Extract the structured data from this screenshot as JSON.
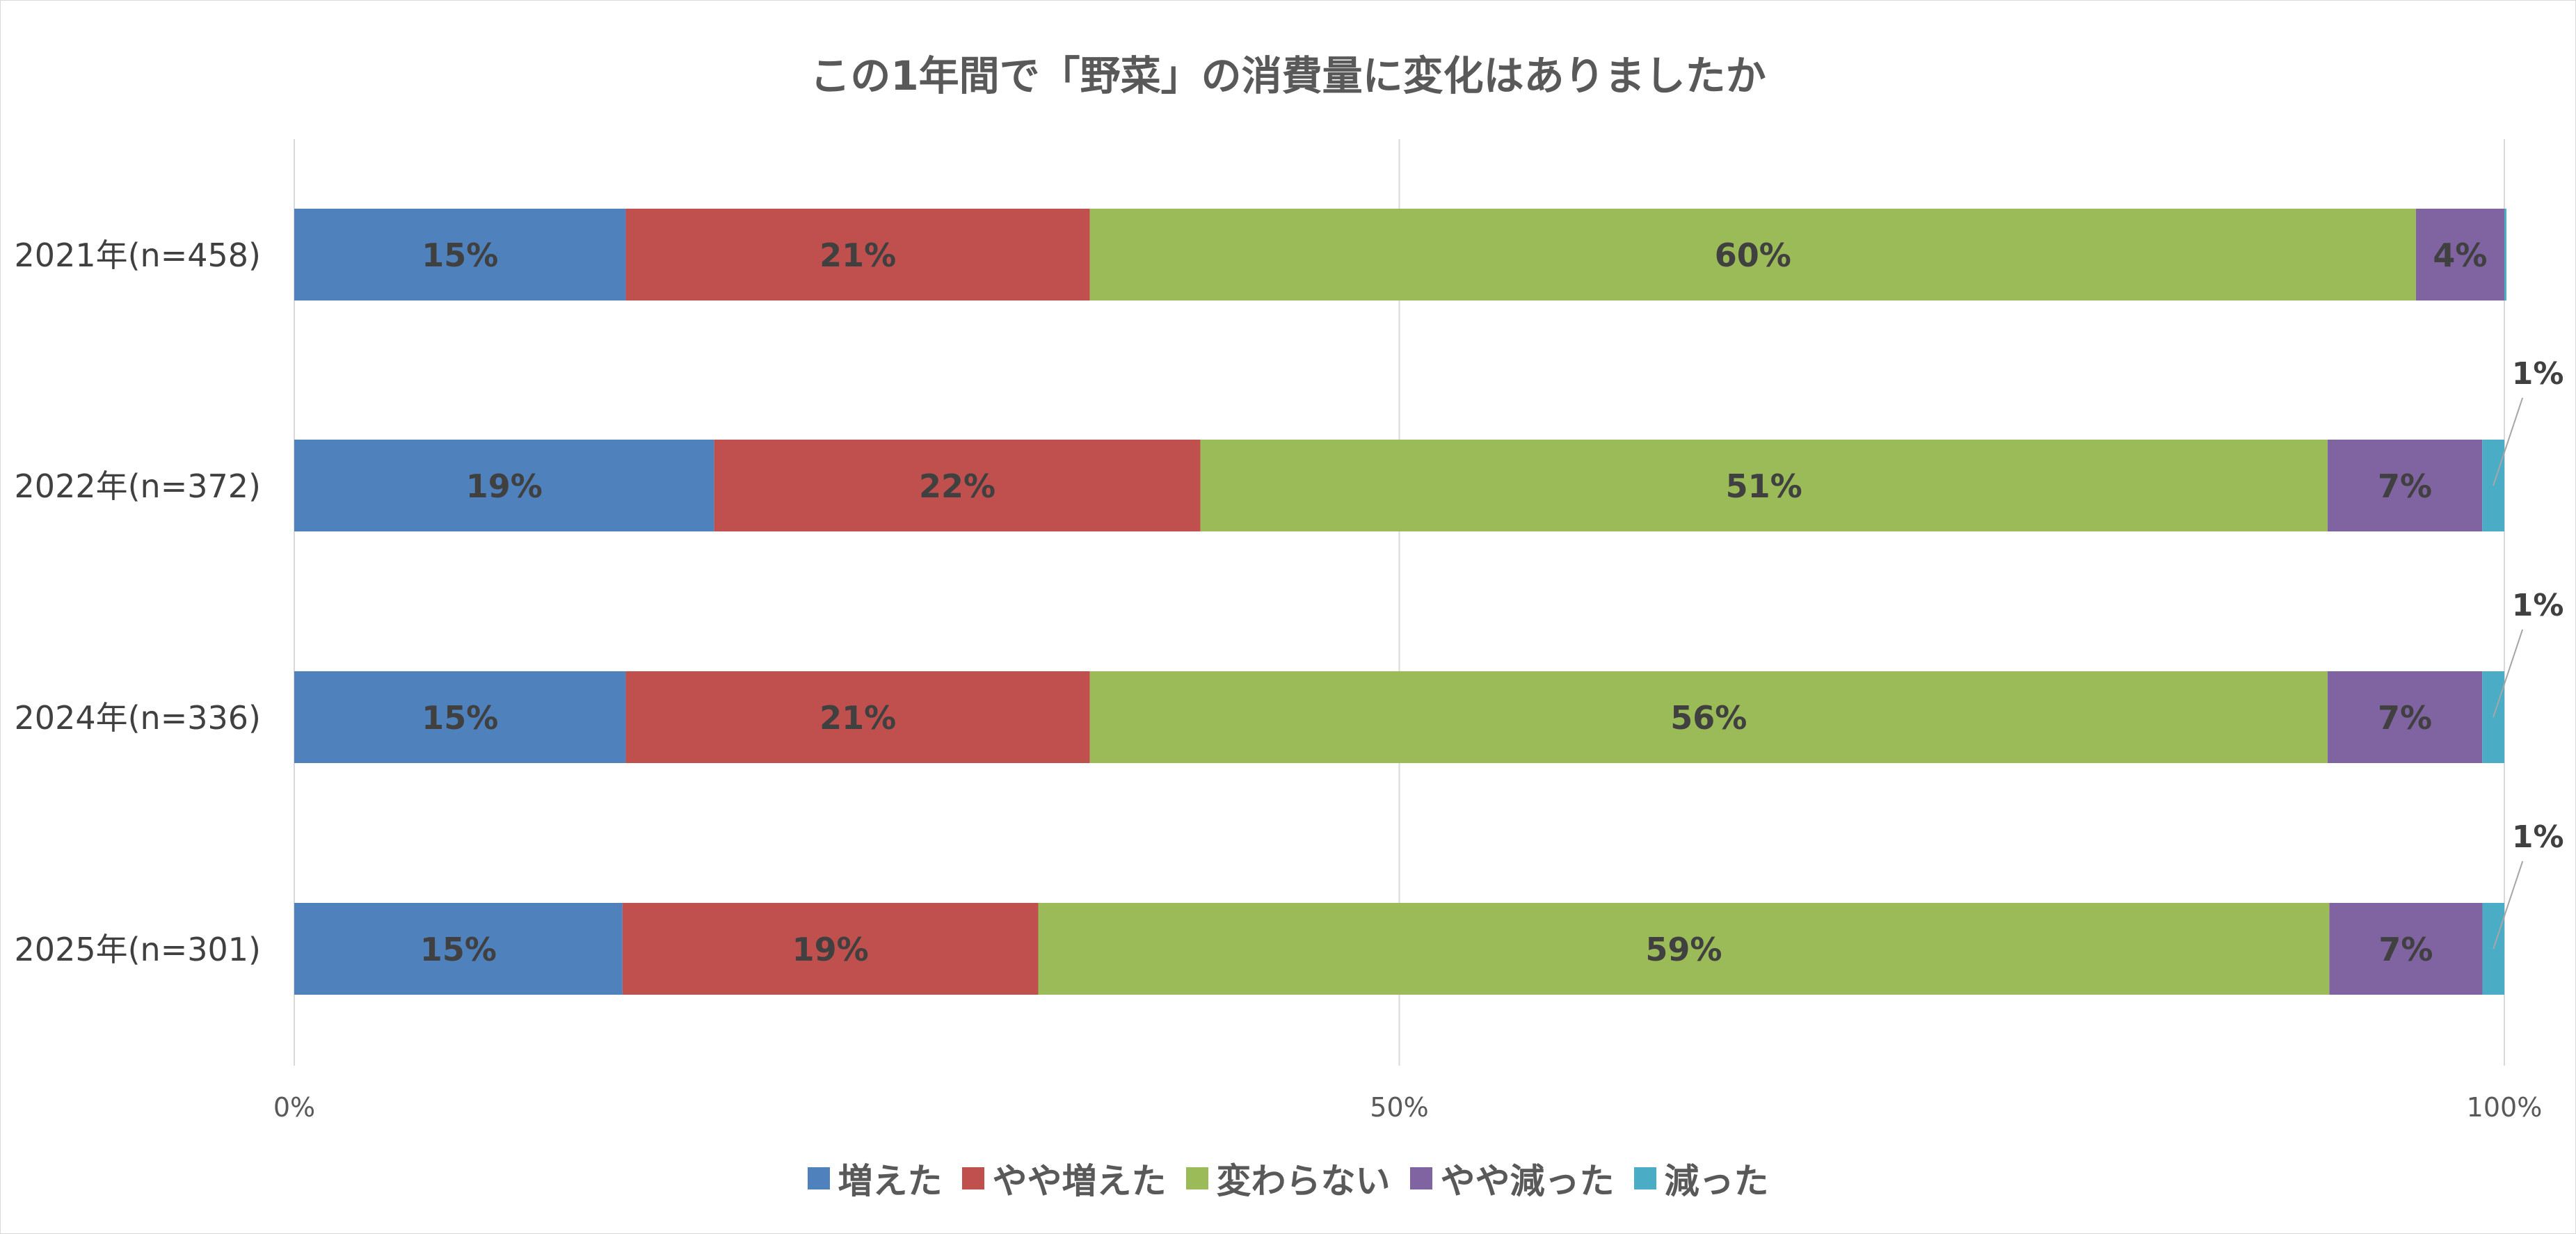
{
  "chart_data": {
    "type": "bar",
    "orientation": "horizontal",
    "stacked": "percent",
    "title": "この1年間で「野菜」の消費量に変化はありましたか",
    "categories": [
      "2021年(n=458)",
      "2022年(n=372)",
      "2024年(n=336)",
      "2025年(n=301)"
    ],
    "series": [
      {
        "name": "増えた",
        "color": "#4f81bd",
        "values": [
          15,
          19,
          15,
          15
        ]
      },
      {
        "name": "やや増えた",
        "color": "#c0504d",
        "values": [
          21,
          22,
          21,
          19
        ]
      },
      {
        "name": "変わらない",
        "color": "#9bbb59",
        "values": [
          60,
          51,
          56,
          59
        ]
      },
      {
        "name": "やや減った",
        "color": "#8064a2",
        "values": [
          4,
          7,
          7,
          7
        ]
      },
      {
        "name": "減った",
        "color": "#4bacc6",
        "values": [
          0,
          1,
          1,
          1
        ]
      }
    ],
    "value_labels": [
      [
        "15%",
        "21%",
        "60%",
        "4%",
        ""
      ],
      [
        "19%",
        "22%",
        "51%",
        "7%",
        "1%"
      ],
      [
        "15%",
        "21%",
        "56%",
        "7%",
        "1%"
      ],
      [
        "15%",
        "19%",
        "59%",
        "7%",
        "1%"
      ]
    ],
    "x_ticks": [
      "0%",
      "50%",
      "100%"
    ],
    "xlim": [
      0,
      100
    ],
    "grid": true,
    "legend_position": "bottom",
    "label_color": "#404040"
  }
}
